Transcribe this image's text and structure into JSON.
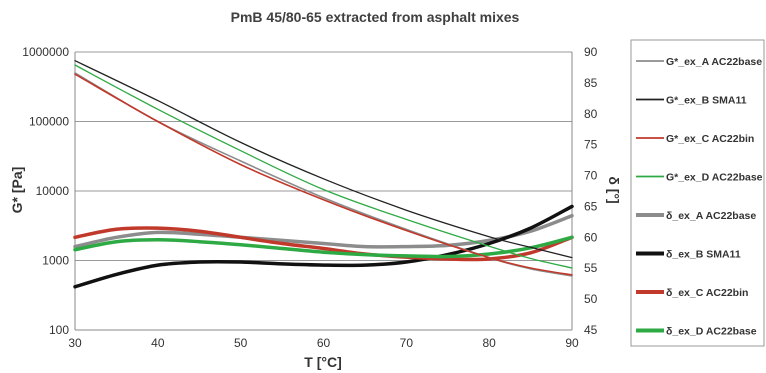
{
  "chart_data": {
    "type": "line",
    "title": "PmB 45/80-65 extracted from asphalt mixes",
    "xlabel": "T [°C]",
    "ylabel": "G* [Pa]",
    "y2label": "δ [°]",
    "xlim": [
      30,
      90
    ],
    "ylim": [
      100,
      1000000
    ],
    "yscale": "log",
    "y2lim": [
      45,
      90
    ],
    "xticks": [
      "30",
      "40",
      "50",
      "60",
      "70",
      "80",
      "90"
    ],
    "yticks": [
      "100",
      "1000",
      "10000",
      "100000",
      "1000000"
    ],
    "y2ticks": [
      "45",
      "50",
      "55",
      "60",
      "65",
      "70",
      "75",
      "80",
      "85",
      "90"
    ],
    "grid": "horizontal",
    "legend_position": "right",
    "series": [
      {
        "name": "G*_ex_A AC22base",
        "axis": "left",
        "color": "#8c8c8c",
        "width": 1.6,
        "x": [
          30,
          40,
          50,
          60,
          70,
          80,
          85,
          90
        ],
        "y": [
          500000,
          100000,
          27000,
          8000,
          2800,
          1100,
          760,
          600
        ]
      },
      {
        "name": "G*_ex_B SMA11",
        "axis": "left",
        "color": "#222222",
        "width": 1.3,
        "x": [
          30,
          40,
          50,
          60,
          70,
          80,
          85,
          90
        ],
        "y": [
          750000,
          200000,
          50000,
          15000,
          5300,
          2200,
          1550,
          1100
        ]
      },
      {
        "name": "G*_ex_C AC22bin",
        "axis": "left",
        "color": "#c0392b",
        "width": 1.6,
        "x": [
          30,
          40,
          50,
          60,
          70,
          80,
          85,
          90
        ],
        "y": [
          480000,
          100000,
          24000,
          7500,
          2700,
          1100,
          780,
          620
        ]
      },
      {
        "name": "G*_ex_D AC22base",
        "axis": "left",
        "color": "#2eaa44",
        "width": 1.3,
        "x": [
          30,
          40,
          50,
          60,
          70,
          80,
          85,
          90
        ],
        "y": [
          650000,
          150000,
          38000,
          10500,
          3900,
          1600,
          1070,
          780
        ]
      },
      {
        "name": "δ_ex_A AC22base",
        "axis": "right",
        "color": "#8c8c8c",
        "width": 3.5,
        "x": [
          30,
          35,
          40,
          45,
          50,
          55,
          60,
          65,
          70,
          75,
          80,
          85,
          90
        ],
        "y": [
          58.5,
          60,
          60.8,
          60.5,
          60,
          59.5,
          59,
          58.5,
          58.5,
          58.7,
          59.5,
          61,
          63.5
        ]
      },
      {
        "name": "δ_ex_B SMA11",
        "axis": "right",
        "color": "#111111",
        "width": 3.5,
        "x": [
          30,
          35,
          40,
          45,
          50,
          55,
          60,
          65,
          70,
          75,
          80,
          85,
          90
        ],
        "y": [
          52,
          54,
          55.5,
          56,
          56,
          55.7,
          55.5,
          55.5,
          56,
          57.2,
          59,
          61.5,
          65
        ]
      },
      {
        "name": "δ_ex_C AC22bin",
        "axis": "right",
        "color": "#c0392b",
        "width": 3.5,
        "x": [
          30,
          35,
          40,
          45,
          50,
          55,
          60,
          65,
          70,
          75,
          80,
          85,
          90
        ],
        "y": [
          60,
          61.3,
          61.5,
          61,
          60,
          59,
          58.2,
          57.3,
          56.8,
          56.5,
          56.5,
          57.5,
          60
        ]
      },
      {
        "name": "δ_ex_D AC22base",
        "axis": "right",
        "color": "#2eaa44",
        "width": 3.5,
        "x": [
          30,
          35,
          40,
          45,
          50,
          55,
          60,
          65,
          70,
          75,
          80,
          85,
          90
        ],
        "y": [
          58,
          59.3,
          59.6,
          59.3,
          58.8,
          58.2,
          57.6,
          57.2,
          57,
          56.9,
          57.3,
          58.3,
          60
        ]
      }
    ]
  }
}
